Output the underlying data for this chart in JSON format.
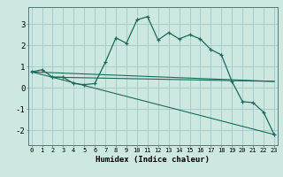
{
  "xlabel": "Humidex (Indice chaleur)",
  "bg_color": "#cce8e0",
  "grid_color": "#aacccc",
  "line_color": "#1a6b5a",
  "line1_x": [
    0,
    1,
    2,
    3,
    4,
    5,
    6,
    7,
    8,
    9,
    10,
    11,
    12,
    13,
    14,
    15,
    16,
    17,
    18,
    19,
    20,
    21,
    22,
    23
  ],
  "line1_y": [
    0.75,
    0.85,
    0.5,
    0.5,
    0.2,
    0.15,
    0.2,
    1.2,
    2.35,
    2.1,
    3.2,
    3.35,
    2.25,
    2.6,
    2.3,
    2.5,
    2.3,
    1.8,
    1.55,
    0.3,
    -0.65,
    -0.7,
    -1.15,
    -2.2
  ],
  "line2_x": [
    0,
    23
  ],
  "line2_y": [
    0.75,
    -2.2
  ],
  "line3_x": [
    0,
    23
  ],
  "line3_y": [
    0.75,
    0.3
  ],
  "line4_x": [
    2,
    23
  ],
  "line4_y": [
    0.5,
    0.3
  ],
  "xlim": [
    -0.3,
    23.3
  ],
  "ylim": [
    -2.7,
    3.8
  ],
  "yticks": [
    -2,
    -1,
    0,
    1,
    2,
    3
  ],
  "xticks": [
    0,
    1,
    2,
    3,
    4,
    5,
    6,
    7,
    8,
    9,
    10,
    11,
    12,
    13,
    14,
    15,
    16,
    17,
    18,
    19,
    20,
    21,
    22,
    23
  ]
}
